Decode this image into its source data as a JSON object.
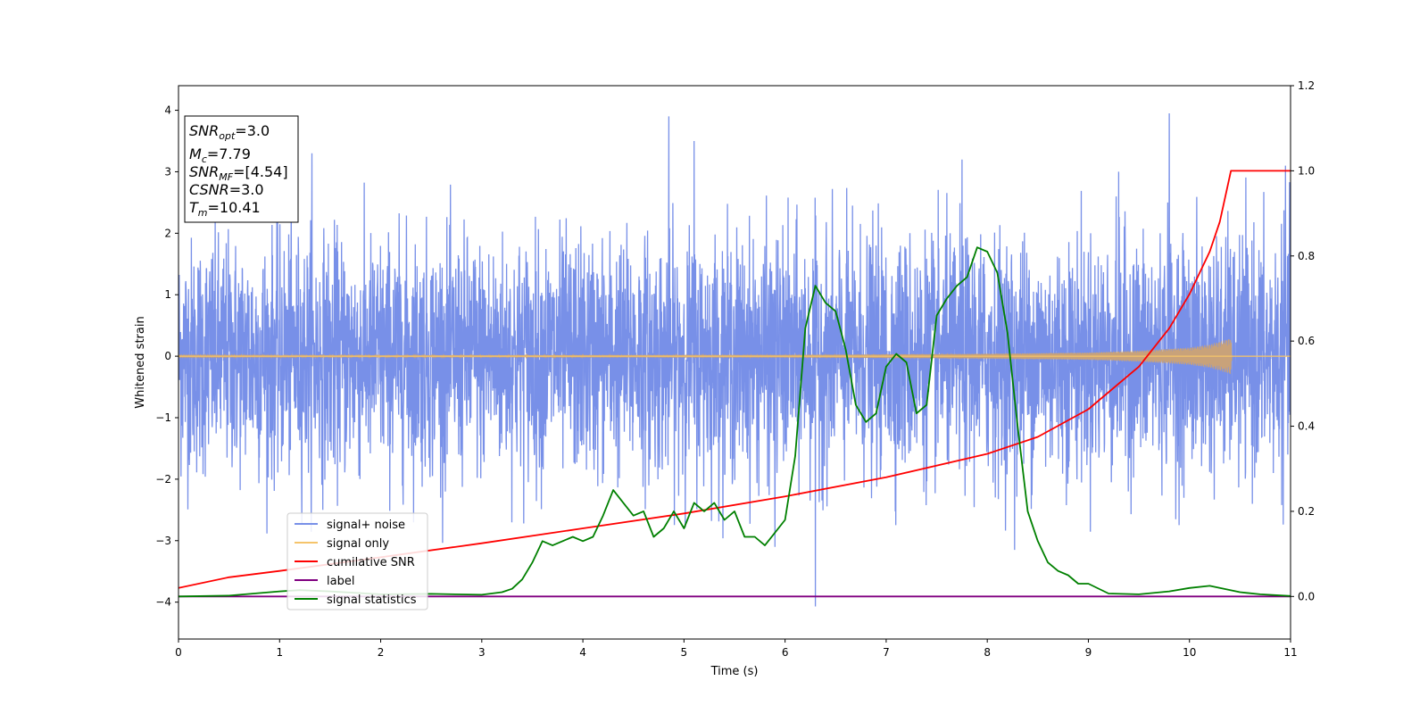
{
  "chart_data": {
    "type": "line",
    "xlabel": "Time (s)",
    "ylabel": "Whitened strain",
    "xlim": [
      0,
      11
    ],
    "ylim": [
      -4.6,
      4.4
    ],
    "ylim_right": [
      -0.1,
      1.2
    ],
    "x_ticks": [
      "0",
      "1",
      "2",
      "3",
      "4",
      "5",
      "6",
      "7",
      "8",
      "9",
      "10",
      "11"
    ],
    "y_ticks": [
      "−4",
      "−3",
      "−2",
      "−1",
      "0",
      "1",
      "2",
      "3",
      "4"
    ],
    "y_ticks_right": [
      "0.0",
      "0.2",
      "0.4",
      "0.6",
      "0.8",
      "1.0",
      "1.2"
    ],
    "grid": false,
    "legend_position": "lower-left",
    "textbox": {
      "snr_opt": {
        "base": "SNR",
        "sub": "opt",
        "value": "=3.0"
      },
      "mc": {
        "base": "M",
        "sub": "c",
        "value": "=7.79"
      },
      "snr_mf": {
        "base": "SNR",
        "sub": "MF",
        "value": "=[4.54]"
      },
      "csnr": {
        "base": "CSNR",
        "sub": "",
        "value": "=3.0"
      },
      "tm": {
        "base": "T",
        "sub": "m",
        "value": "=10.41"
      }
    },
    "series": [
      {
        "name": "signal+ noise",
        "axis": "left",
        "color": "#7890e8",
        "description": "noisy whitened strain, roughly within [-2.6, 2.6] with peaks to ~3.9 near t=4.85 and t=9.8 and a dip to -4.07 near t=6.3",
        "approx_range": [
          -4.07,
          3.95
        ]
      },
      {
        "name": "signal only",
        "axis": "left",
        "color": "#f5c46b",
        "envelope_t": [
          0,
          6,
          8,
          9,
          9.5,
          10,
          10.2,
          10.35,
          10.41,
          10.42,
          11
        ],
        "envelope_a": [
          0.01,
          0.02,
          0.04,
          0.06,
          0.09,
          0.14,
          0.19,
          0.26,
          0.3,
          0.0,
          0.0
        ]
      },
      {
        "name": "cumilative SNR",
        "axis": "right",
        "color": "#ff0000",
        "x": [
          0,
          0.5,
          1,
          2,
          3,
          4,
          5,
          6,
          7,
          8,
          8.5,
          9,
          9.5,
          9.8,
          10,
          10.2,
          10.3,
          10.41,
          10.42,
          11
        ],
        "y": [
          0.02,
          0.045,
          0.06,
          0.092,
          0.125,
          0.16,
          0.195,
          0.235,
          0.28,
          0.335,
          0.375,
          0.44,
          0.54,
          0.63,
          0.71,
          0.81,
          0.88,
          1.0,
          1.0,
          1.0
        ]
      },
      {
        "name": "label",
        "axis": "right",
        "color": "#800080",
        "x": [
          0,
          11
        ],
        "y": [
          0.0,
          0.0
        ]
      },
      {
        "name": "signal statistics",
        "axis": "right",
        "color": "#008000",
        "x": [
          0,
          0.5,
          0.8,
          1,
          1.2,
          1.5,
          2,
          2.5,
          3,
          3.2,
          3.3,
          3.4,
          3.5,
          3.6,
          3.7,
          3.8,
          3.9,
          4.0,
          4.1,
          4.2,
          4.3,
          4.4,
          4.5,
          4.6,
          4.7,
          4.8,
          4.9,
          5.0,
          5.1,
          5.2,
          5.3,
          5.4,
          5.5,
          5.6,
          5.7,
          5.8,
          5.9,
          6.0,
          6.1,
          6.2,
          6.3,
          6.4,
          6.5,
          6.6,
          6.7,
          6.8,
          6.9,
          7.0,
          7.1,
          7.2,
          7.3,
          7.4,
          7.5,
          7.6,
          7.7,
          7.8,
          7.9,
          8.0,
          8.1,
          8.2,
          8.3,
          8.4,
          8.5,
          8.6,
          8.7,
          8.8,
          8.9,
          9.0,
          9.2,
          9.5,
          9.8,
          10.0,
          10.2,
          10.3,
          10.5,
          10.7,
          11
        ],
        "y": [
          0.0,
          0.002,
          0.008,
          0.012,
          0.015,
          0.012,
          0.005,
          0.006,
          0.004,
          0.01,
          0.018,
          0.04,
          0.08,
          0.13,
          0.12,
          0.13,
          0.14,
          0.13,
          0.14,
          0.19,
          0.25,
          0.22,
          0.19,
          0.2,
          0.14,
          0.16,
          0.2,
          0.16,
          0.22,
          0.2,
          0.22,
          0.18,
          0.2,
          0.14,
          0.14,
          0.12,
          0.15,
          0.18,
          0.33,
          0.63,
          0.73,
          0.69,
          0.67,
          0.58,
          0.45,
          0.41,
          0.43,
          0.54,
          0.57,
          0.55,
          0.43,
          0.45,
          0.66,
          0.7,
          0.73,
          0.75,
          0.82,
          0.81,
          0.76,
          0.62,
          0.4,
          0.2,
          0.13,
          0.08,
          0.06,
          0.05,
          0.03,
          0.03,
          0.007,
          0.005,
          0.012,
          0.02,
          0.025,
          0.02,
          0.01,
          0.005,
          0.001
        ]
      }
    ]
  }
}
